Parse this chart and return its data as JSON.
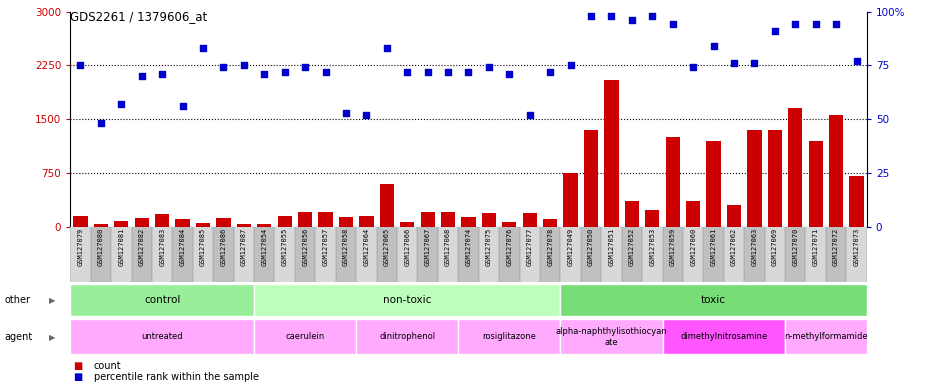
{
  "title": "GDS2261 / 1379606_at",
  "samples": [
    "GSM127079",
    "GSM127080",
    "GSM127081",
    "GSM127082",
    "GSM127083",
    "GSM127084",
    "GSM127085",
    "GSM127086",
    "GSM127087",
    "GSM127054",
    "GSM127055",
    "GSM127056",
    "GSM127057",
    "GSM127058",
    "GSM127064",
    "GSM127065",
    "GSM127066",
    "GSM127067",
    "GSM127068",
    "GSM127074",
    "GSM127075",
    "GSM127076",
    "GSM127077",
    "GSM127078",
    "GSM127049",
    "GSM127050",
    "GSM127051",
    "GSM127052",
    "GSM127053",
    "GSM127059",
    "GSM127060",
    "GSM127061",
    "GSM127062",
    "GSM127063",
    "GSM127069",
    "GSM127070",
    "GSM127071",
    "GSM127072",
    "GSM127073"
  ],
  "counts": [
    150,
    30,
    80,
    120,
    180,
    100,
    50,
    120,
    40,
    30,
    150,
    200,
    200,
    130,
    150,
    600,
    70,
    200,
    200,
    130,
    190,
    60,
    190,
    100,
    750,
    1350,
    2050,
    350,
    230,
    1250,
    350,
    1200,
    300,
    1350,
    1350,
    1650,
    1200,
    1550,
    700
  ],
  "percentile_raw": [
    75,
    48,
    57,
    70,
    71,
    56,
    83,
    74,
    75,
    71,
    72,
    74,
    72,
    53,
    52,
    83,
    72,
    72,
    72,
    72,
    74,
    71,
    52,
    72,
    75,
    98,
    98,
    96,
    98,
    94,
    74,
    84,
    76,
    76,
    91,
    94,
    94,
    94,
    77
  ],
  "ylim_left": [
    0,
    3000
  ],
  "ylim_right": [
    0,
    100
  ],
  "yticks_left": [
    0,
    750,
    1500,
    2250,
    3000
  ],
  "yticks_right": [
    0,
    25,
    50,
    75,
    100
  ],
  "bar_color": "#cc0000",
  "dot_color": "#0000cc",
  "bg_color": "#d0d0d0",
  "plot_bg": "#ffffff",
  "group_boundaries": [
    [
      0,
      9,
      "control",
      "#99ee99"
    ],
    [
      9,
      24,
      "non-toxic",
      "#bbffbb"
    ],
    [
      24,
      39,
      "toxic",
      "#77dd77"
    ]
  ],
  "agent_boundaries": [
    [
      0,
      9,
      "untreated",
      "#ffaaff"
    ],
    [
      9,
      14,
      "caerulein",
      "#ffaaff"
    ],
    [
      14,
      19,
      "dinitrophenol",
      "#ffaaff"
    ],
    [
      19,
      24,
      "rosiglitazone",
      "#ffaaff"
    ],
    [
      24,
      29,
      "alpha-naphthylisothiocyan\nate",
      "#ffaaff"
    ],
    [
      29,
      35,
      "dimethylnitrosamine",
      "#ff55ff"
    ],
    [
      35,
      39,
      "n-methylformamide",
      "#ffaaff"
    ]
  ],
  "legend_count_color": "#cc0000",
  "legend_dot_color": "#0000cc"
}
